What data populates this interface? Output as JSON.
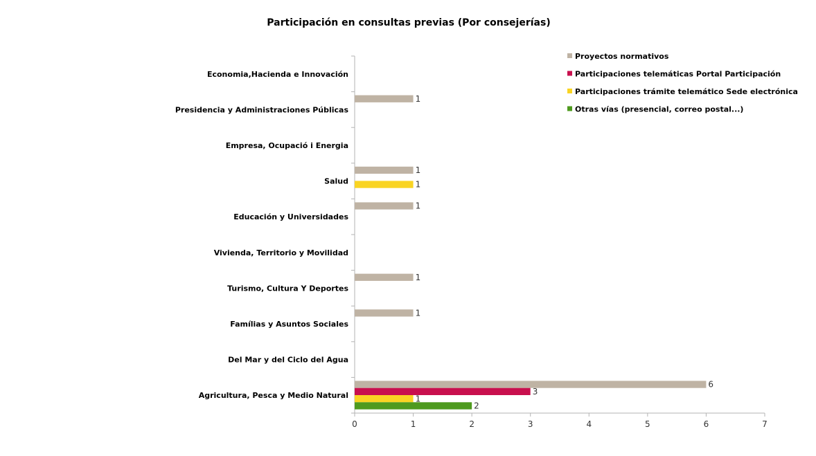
{
  "chart_data": {
    "type": "bar",
    "orientation": "horizontal",
    "title": "Participación en consultas previas (Por consejerías)",
    "xlabel": "",
    "ylabel": "",
    "xlim": [
      0,
      7
    ],
    "x_ticks": [
      "0",
      "1",
      "2",
      "3",
      "4",
      "5",
      "6",
      "7"
    ],
    "grid": false,
    "legend_position": "top-right",
    "categories": [
      "Economia,Hacienda e Innovación",
      "Presidencia y Administraciones Públicas",
      "Empresa, Ocupació i Energia",
      "Salud",
      "Educación y  Universidades",
      "Vivienda, Territorio y Movilidad",
      "Turismo, Cultura Y Deportes",
      "Famílias y Asuntos Sociales",
      "Del Mar y del Ciclo del Agua",
      "Agricultura, Pesca y Medio Natural"
    ],
    "series": [
      {
        "name": "Proyectos normativos",
        "color": "#bfb3a4",
        "values": [
          0,
          1,
          0,
          1,
          1,
          0,
          1,
          1,
          0,
          6
        ]
      },
      {
        "name": "Participaciones telemáticas Portal Participación",
        "color": "#c8104e",
        "values": [
          0,
          0,
          0,
          0,
          0,
          0,
          0,
          0,
          0,
          3
        ]
      },
      {
        "name": "Participaciones trámite telemático Sede electrónica",
        "color": "#f9d423",
        "values": [
          0,
          0,
          0,
          1,
          0,
          0,
          0,
          0,
          0,
          1
        ]
      },
      {
        "name": "Otras vías  (presencial, correo postal...)",
        "color": "#4e9a1e",
        "values": [
          0,
          0,
          0,
          0,
          0,
          0,
          0,
          0,
          0,
          2
        ]
      }
    ]
  }
}
